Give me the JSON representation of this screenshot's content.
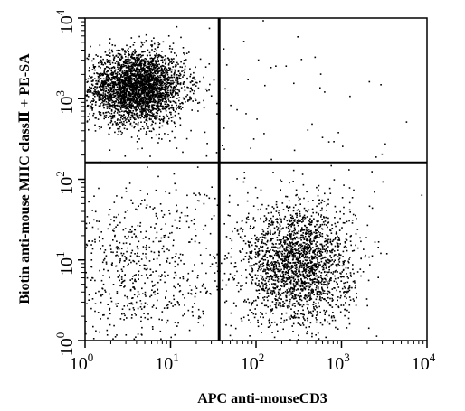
{
  "chart_data": {
    "type": "scatter",
    "title": "",
    "xlabel": "APC anti-mouseCD3",
    "ylabel": "Biotin anti-mouse MHC classⅡ + PE-SA",
    "xscale": "log",
    "yscale": "log",
    "xlim": [
      1,
      10000
    ],
    "ylim": [
      1,
      10000
    ],
    "x_ticks": [
      {
        "base": "10",
        "exp": "0",
        "value": 1
      },
      {
        "base": "10",
        "exp": "1",
        "value": 10
      },
      {
        "base": "10",
        "exp": "2",
        "value": 100
      },
      {
        "base": "10",
        "exp": "3",
        "value": 1000
      },
      {
        "base": "10",
        "exp": "4",
        "value": 10000
      }
    ],
    "y_ticks": [
      {
        "base": "10",
        "exp": "0",
        "value": 1
      },
      {
        "base": "10",
        "exp": "1",
        "value": 10
      },
      {
        "base": "10",
        "exp": "2",
        "value": 100
      },
      {
        "base": "10",
        "exp": "3",
        "value": 1000
      },
      {
        "base": "10",
        "exp": "4",
        "value": 10000
      }
    ],
    "quadrant_gates": {
      "x": 37,
      "y": 160
    },
    "populations": [
      {
        "x_center": 4,
        "y_center": 1400,
        "x_spread_decades": 0.28,
        "y_spread_decades": 0.22,
        "count": 3200
      },
      {
        "x_center": 300,
        "y_center": 9,
        "x_spread_decades": 0.32,
        "y_spread_decades": 0.38,
        "count": 2200
      },
      {
        "x_center": 4,
        "y_center": 7,
        "x_spread_decades": 0.5,
        "y_spread_decades": 0.55,
        "count": 700
      },
      {
        "x_center": 100,
        "y_center": 200,
        "x_spread_decades": 1.1,
        "y_spread_decades": 1.0,
        "count": 160
      }
    ],
    "grid": false,
    "legend": "none",
    "point_color": "#000000",
    "gate_color": "#000000"
  }
}
